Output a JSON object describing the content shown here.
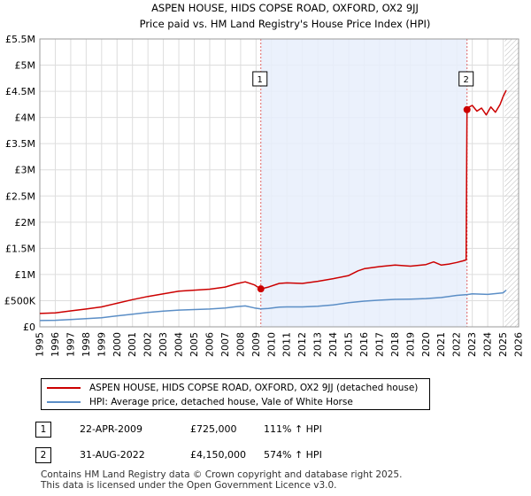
{
  "chart_data": {
    "type": "line",
    "title": "ASPEN HOUSE, HIDS COPSE ROAD, OXFORD, OX2 9JJ",
    "subtitle": "Price paid vs. HM Land Registry's House Price Index (HPI)",
    "xlim": [
      1995,
      2026
    ],
    "ylim": [
      0,
      5500000
    ],
    "x_ticks": [
      1995,
      1996,
      1997,
      1998,
      1999,
      2000,
      2001,
      2002,
      2003,
      2004,
      2005,
      2006,
      2007,
      2008,
      2009,
      2010,
      2011,
      2012,
      2013,
      2014,
      2015,
      2016,
      2017,
      2018,
      2019,
      2020,
      2021,
      2022,
      2023,
      2024,
      2025,
      2026
    ],
    "y_ticks": [
      {
        "value": 0,
        "label": "£0"
      },
      {
        "value": 500000,
        "label": "£500K"
      },
      {
        "value": 1000000,
        "label": "£1M"
      },
      {
        "value": 1500000,
        "label": "£1.5M"
      },
      {
        "value": 2000000,
        "label": "£2M"
      },
      {
        "value": 2500000,
        "label": "£2.5M"
      },
      {
        "value": 3000000,
        "label": "£3M"
      },
      {
        "value": 3500000,
        "label": "£3.5M"
      },
      {
        "value": 4000000,
        "label": "£4M"
      },
      {
        "value": 4500000,
        "label": "£4.5M"
      },
      {
        "value": 5000000,
        "label": "£5M"
      },
      {
        "value": 5500000,
        "label": "£5.5M"
      }
    ],
    "shaded_range": [
      2009.31,
      2022.66
    ],
    "hatched_from": 2025.1,
    "series": [
      {
        "name": "ASPEN HOUSE, HIDS COPSE ROAD, OXFORD, OX2 9JJ (detached house)",
        "color": "#cc0000",
        "x": [
          1995.0,
          1996.0,
          1997.0,
          1998.0,
          1999.0,
          2000.0,
          2001.0,
          2002.0,
          2003.0,
          2004.0,
          2005.0,
          2006.0,
          2007.0,
          2007.7,
          2008.3,
          2008.9,
          2009.31,
          2009.8,
          2010.5,
          2011.0,
          2012.0,
          2013.0,
          2014.0,
          2015.0,
          2015.6,
          2016.0,
          2017.0,
          2018.0,
          2019.0,
          2020.0,
          2020.5,
          2021.0,
          2021.5,
          2022.0,
          2022.4,
          2022.6,
          2022.66,
          2022.8,
          2023.0,
          2023.3,
          2023.6,
          2023.9,
          2024.2,
          2024.5,
          2024.8,
          2025.0,
          2025.2
        ],
        "values": [
          255000,
          265000,
          305000,
          340000,
          380000,
          450000,
          520000,
          580000,
          630000,
          680000,
          700000,
          720000,
          760000,
          820000,
          860000,
          800000,
          725000,
          760000,
          830000,
          840000,
          830000,
          870000,
          920000,
          980000,
          1070000,
          1110000,
          1150000,
          1180000,
          1160000,
          1190000,
          1240000,
          1180000,
          1200000,
          1230000,
          1260000,
          1280000,
          4150000,
          4200000,
          4230000,
          4120000,
          4180000,
          4050000,
          4200000,
          4100000,
          4250000,
          4400000,
          4520000
        ]
      },
      {
        "name": "HPI: Average price, detached house, Vale of White Horse",
        "color": "#5b8ec6",
        "x": [
          1995.0,
          1996.0,
          1997.0,
          1998.0,
          1999.0,
          2000.0,
          2001.0,
          2002.0,
          2003.0,
          2004.0,
          2005.0,
          2006.0,
          2007.0,
          2007.7,
          2008.3,
          2008.9,
          2009.31,
          2009.8,
          2010.5,
          2011.0,
          2012.0,
          2013.0,
          2014.0,
          2015.0,
          2016.0,
          2017.0,
          2018.0,
          2019.0,
          2020.0,
          2021.0,
          2022.0,
          2022.66,
          2023.0,
          2024.0,
          2025.0,
          2025.2
        ],
        "values": [
          120000,
          125000,
          140000,
          155000,
          175000,
          210000,
          240000,
          275000,
          300000,
          320000,
          330000,
          340000,
          360000,
          385000,
          400000,
          360000,
          343000,
          350000,
          375000,
          380000,
          380000,
          395000,
          420000,
          460000,
          490000,
          510000,
          525000,
          530000,
          540000,
          560000,
          600000,
          616000,
          630000,
          620000,
          650000,
          700000
        ]
      }
    ],
    "sales": [
      {
        "n": "1",
        "x": 2009.31,
        "value": 725000,
        "date": "22-APR-2009",
        "price": "£725,000",
        "hpi": "111% ↑ HPI"
      },
      {
        "n": "2",
        "x": 2022.66,
        "value": 4150000,
        "date": "31-AUG-2022",
        "price": "£4,150,000",
        "hpi": "574% ↑ HPI"
      }
    ]
  },
  "legend": {
    "property_label": "ASPEN HOUSE, HIDS COPSE ROAD, OXFORD, OX2 9JJ (detached house)",
    "hpi_label": "HPI: Average price, detached house, Vale of White Horse",
    "property_color": "#cc0000",
    "hpi_color": "#5b8ec6"
  },
  "footer": {
    "line1": "Contains HM Land Registry data © Crown copyright and database right 2025.",
    "line2": "This data is licensed under the Open Government Licence v3.0."
  }
}
